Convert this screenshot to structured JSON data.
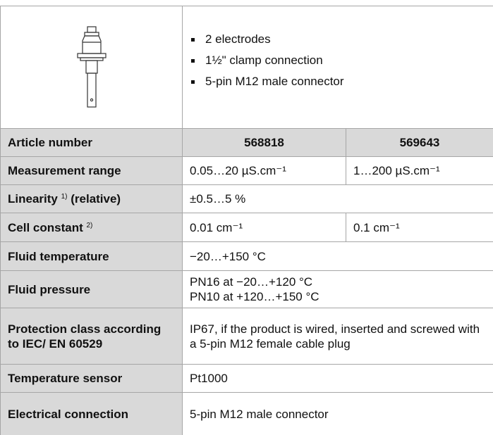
{
  "features": [
    "2 electrodes",
    "1½\" clamp connection",
    "5-pin M12 male connector"
  ],
  "table": {
    "header": {
      "label": "Article number",
      "values": [
        "568818",
        "569643"
      ]
    },
    "rows": [
      {
        "label": "Measurement range",
        "values": [
          "0.05…20 µS.cm⁻¹",
          "1…200 µS.cm⁻¹"
        ]
      },
      {
        "label": "Linearity",
        "note": "1)",
        "label_rest": "(relative)",
        "values": [
          "±0.5…5 %"
        ]
      },
      {
        "label": "Cell constant",
        "note": "2)",
        "values": [
          "0.01 cm⁻¹",
          "0.1 cm⁻¹"
        ]
      },
      {
        "label": "Fluid temperature",
        "values": [
          "−20…+150 °C"
        ]
      },
      {
        "label": "Fluid pressure",
        "values": [
          [
            "PN16 at −20…+120 °C",
            "PN10 at +120…+150 °C"
          ]
        ]
      },
      {
        "label": "Protection class according to IEC/ EN 60529",
        "values": [
          "IP67, if the product is wired, inserted and screwed with a 5-pin M12 female cable plug"
        ]
      },
      {
        "label": "Temperature sensor",
        "values": [
          "Pt1000"
        ]
      },
      {
        "label": "Electrical connection",
        "values": [
          "5-pin M12 male connector"
        ]
      }
    ]
  }
}
